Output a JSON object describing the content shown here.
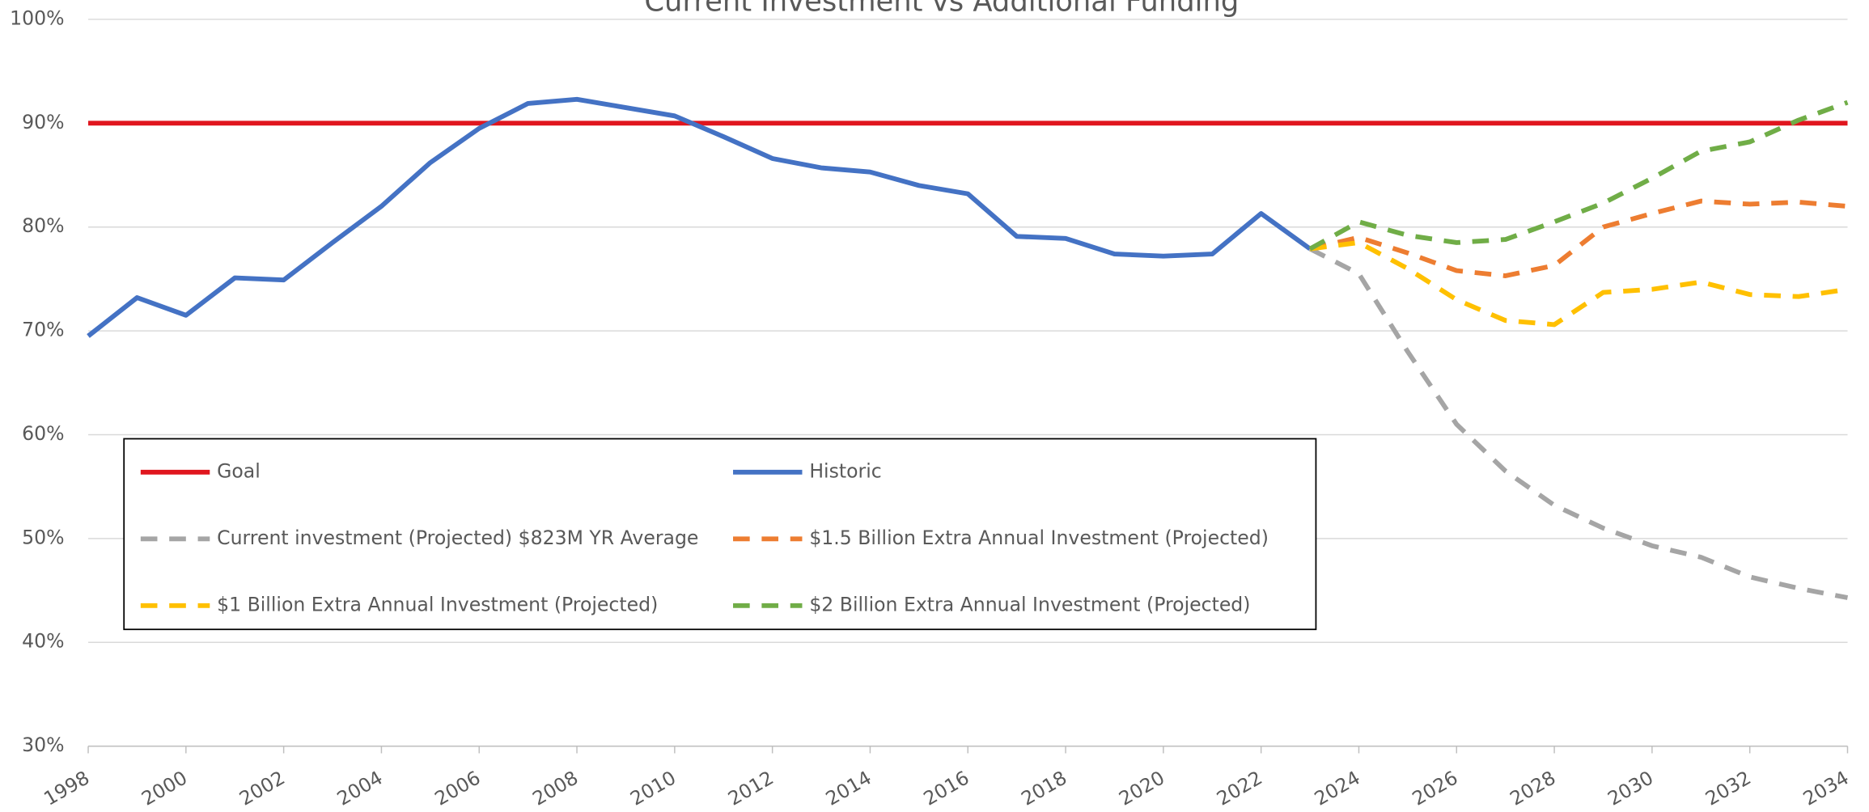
{
  "chart_data": {
    "type": "line",
    "title": "Current Investment vs Additional Funding",
    "x": [
      1998,
      1999,
      2000,
      2001,
      2002,
      2003,
      2004,
      2005,
      2006,
      2007,
      2008,
      2009,
      2010,
      2011,
      2012,
      2013,
      2014,
      2015,
      2016,
      2017,
      2018,
      2019,
      2020,
      2021,
      2022,
      2023,
      2024,
      2025,
      2026,
      2027,
      2028,
      2029,
      2030,
      2031,
      2032,
      2033,
      2034
    ],
    "xlim": [
      1998,
      2034
    ],
    "xticks": [
      1998,
      2000,
      2002,
      2004,
      2006,
      2008,
      2010,
      2012,
      2014,
      2016,
      2018,
      2020,
      2022,
      2024,
      2026,
      2028,
      2030,
      2032,
      2034
    ],
    "ylim": [
      30,
      100
    ],
    "yticks": [
      {
        "value": 30,
        "label": "30%"
      },
      {
        "value": 40,
        "label": "40%"
      },
      {
        "value": 50,
        "label": "50%"
      },
      {
        "value": 60,
        "label": "60%"
      },
      {
        "value": 70,
        "label": "70%"
      },
      {
        "value": 80,
        "label": "80%"
      },
      {
        "value": 90,
        "label": "90%"
      },
      {
        "value": 100,
        "label": "100%"
      }
    ],
    "grid": true,
    "legend": "bottom-left",
    "series": [
      {
        "name": "Goal",
        "color": "#e0161e",
        "dashed": false,
        "values": [
          90,
          90,
          90,
          90,
          90,
          90,
          90,
          90,
          90,
          90,
          90,
          90,
          90,
          90,
          90,
          90,
          90,
          90,
          90,
          90,
          90,
          90,
          90,
          90,
          90,
          90,
          90,
          90,
          90,
          90,
          90,
          90,
          90,
          90,
          90,
          90,
          90
        ]
      },
      {
        "name": "Historic",
        "color": "#4472c4",
        "dashed": false,
        "values": [
          69.5,
          73.2,
          71.5,
          75.1,
          74.9,
          78.5,
          82.0,
          86.2,
          89.5,
          91.9,
          92.3,
          91.5,
          90.7,
          88.7,
          86.6,
          85.7,
          85.3,
          84.0,
          83.2,
          79.1,
          78.9,
          77.4,
          77.2,
          77.4,
          81.3,
          77.9,
          null,
          null,
          null,
          null,
          null,
          null,
          null,
          null,
          null,
          null,
          null
        ]
      },
      {
        "name": "Current investment (Projected) $823M YR Average",
        "color": "#a5a5a5",
        "dashed": true,
        "values": [
          null,
          null,
          null,
          null,
          null,
          null,
          null,
          null,
          null,
          null,
          null,
          null,
          null,
          null,
          null,
          null,
          null,
          null,
          null,
          null,
          null,
          null,
          null,
          null,
          null,
          77.9,
          75.5,
          68.0,
          61.0,
          56.5,
          53.2,
          51.0,
          49.3,
          48.2,
          46.3,
          45.2,
          44.3
        ]
      },
      {
        "name": "$1.5 Billion Extra Annual Investment (Projected)",
        "color": "#ed7d31",
        "dashed": true,
        "values": [
          null,
          null,
          null,
          null,
          null,
          null,
          null,
          null,
          null,
          null,
          null,
          null,
          null,
          null,
          null,
          null,
          null,
          null,
          null,
          null,
          null,
          null,
          null,
          null,
          null,
          77.9,
          79.0,
          77.5,
          75.8,
          75.3,
          76.3,
          80.0,
          81.3,
          82.5,
          82.2,
          82.4,
          82.0
        ]
      },
      {
        "name": "$1 Billion Extra Annual Investment (Projected)",
        "color": "#ffc000",
        "dashed": true,
        "values": [
          null,
          null,
          null,
          null,
          null,
          null,
          null,
          null,
          null,
          null,
          null,
          null,
          null,
          null,
          null,
          null,
          null,
          null,
          null,
          null,
          null,
          null,
          null,
          null,
          null,
          77.9,
          78.5,
          76.0,
          73.0,
          71.0,
          70.6,
          73.7,
          74.0,
          74.7,
          73.5,
          73.3,
          74.0
        ]
      },
      {
        "name": "$2 Billion Extra Annual Investment (Projected)",
        "color": "#70ad47",
        "dashed": true,
        "values": [
          null,
          null,
          null,
          null,
          null,
          null,
          null,
          null,
          null,
          null,
          null,
          null,
          null,
          null,
          null,
          null,
          null,
          null,
          null,
          null,
          null,
          null,
          null,
          null,
          null,
          77.9,
          80.5,
          79.2,
          78.5,
          78.8,
          80.5,
          82.3,
          84.7,
          87.3,
          88.2,
          90.3,
          92.0
        ]
      }
    ]
  }
}
